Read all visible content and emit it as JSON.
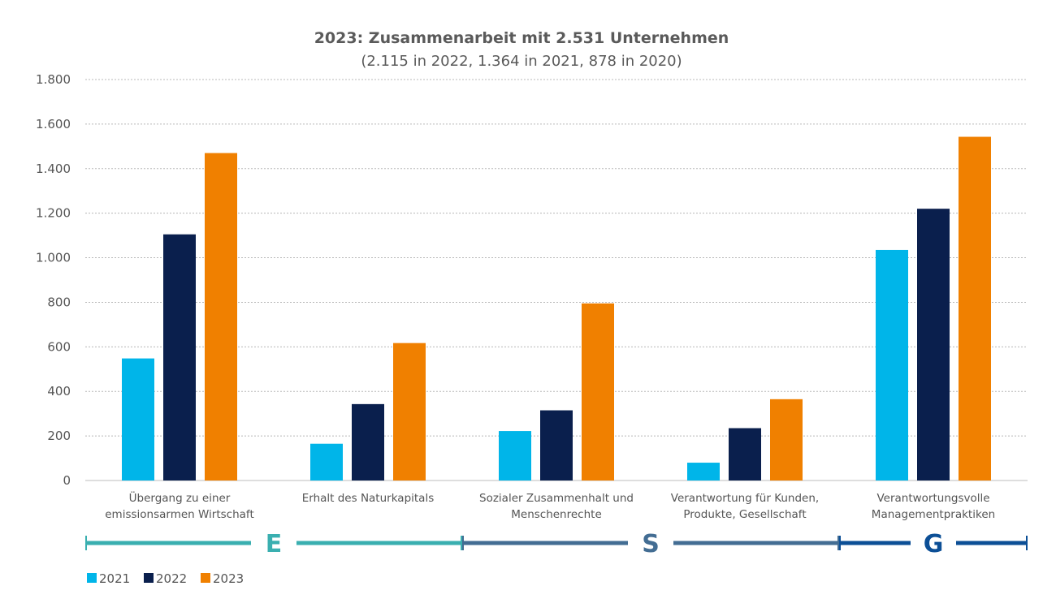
{
  "chart_data": {
    "type": "bar",
    "title": "2023:  Zusammenarbeit mit 2.531 Unternehmen",
    "subtitle": "(2.115 in 2022, 1.364 in 2021, 878 in 2020)",
    "categories": [
      [
        "Übergang zu einer",
        "emissionsarmen Wirtschaft"
      ],
      [
        "Erhalt des Naturkapitals"
      ],
      [
        "Sozialer Zusammenhalt und",
        "Menschenrechte"
      ],
      [
        "Verantwortung für Kunden,",
        "Produkte, Gesellschaft"
      ],
      [
        "Verantwortungsvolle",
        "Managementpraktiken"
      ]
    ],
    "series": [
      {
        "name": "2021",
        "color": "#00b5e9",
        "values": [
          548,
          165,
          222,
          80,
          1035
        ]
      },
      {
        "name": "2022",
        "color": "#0a1f4d",
        "values": [
          1105,
          343,
          315,
          235,
          1220
        ]
      },
      {
        "name": "2023",
        "color": "#f08000",
        "values": [
          1470,
          617,
          795,
          365,
          1543
        ]
      }
    ],
    "ylim": [
      0,
      1800
    ],
    "yticks": [
      0,
      200,
      400,
      600,
      800,
      1000,
      1200,
      1400,
      1600,
      1800
    ],
    "ytick_labels": [
      "0",
      "200",
      "400",
      "600",
      "800",
      "1.000",
      "1.200",
      "1.400",
      "1.600",
      "1.800"
    ],
    "grid": true,
    "legend_position": "bottom-left",
    "esg_groups": [
      {
        "letter": "E",
        "color": "#3aafb0",
        "first_category": 0,
        "last_category": 1
      },
      {
        "letter": "S",
        "color": "#436d93",
        "first_category": 2,
        "last_category": 3
      },
      {
        "letter": "G",
        "color": "#0c4f96",
        "first_category": 4,
        "last_category": 4
      }
    ]
  }
}
